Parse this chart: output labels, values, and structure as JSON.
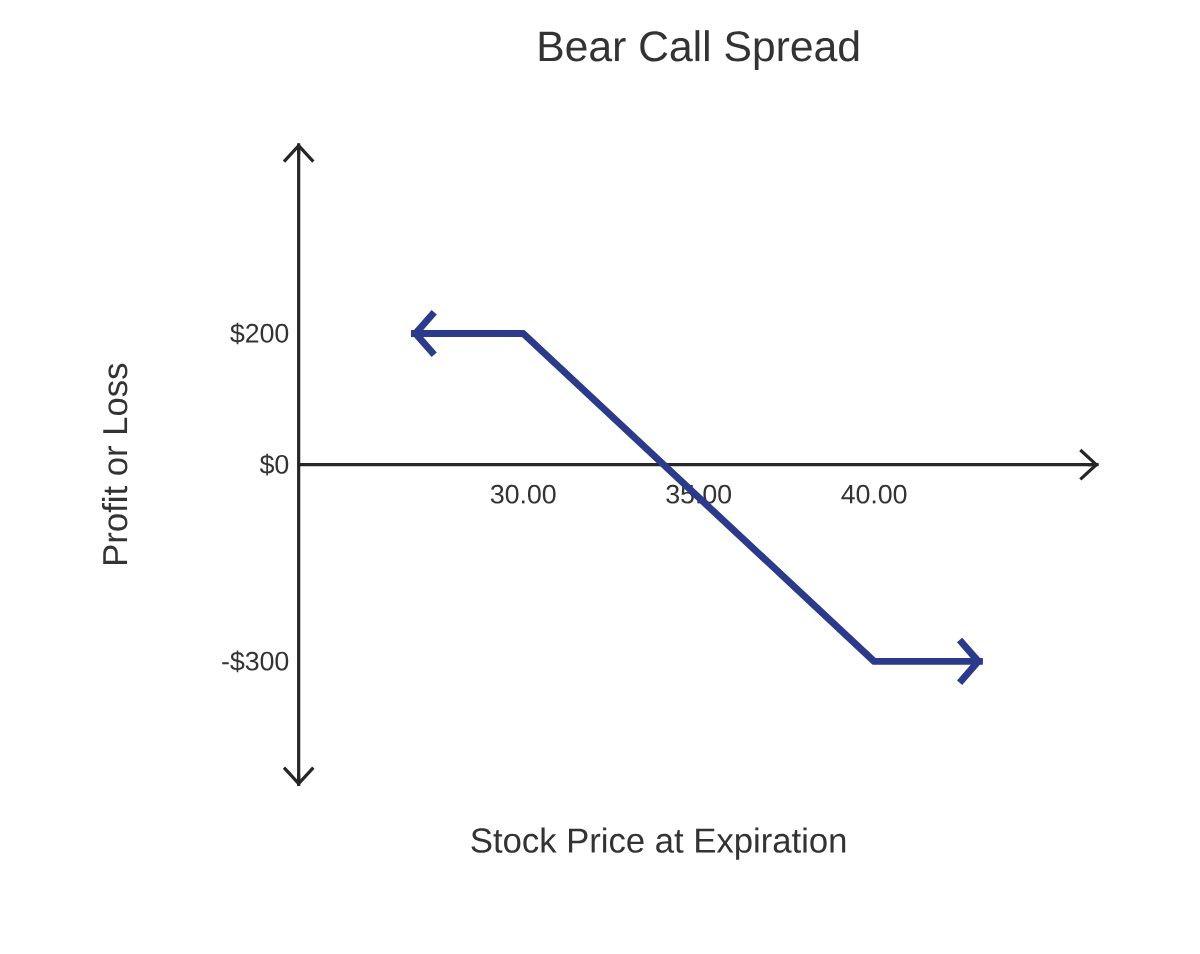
{
  "chart_data": {
    "type": "line",
    "title": "Bear Call Spread",
    "xlabel": "Stock Price at Expiration",
    "ylabel": "Profit or Loss",
    "x": [
      26.8,
      30,
      40,
      43.1
    ],
    "series": [
      {
        "color": "#2b3a8a",
        "values": [
          200,
          200,
          -300,
          -300
        ]
      }
    ],
    "xlim": [
      23.6,
      46.4
    ],
    "ylim": [
      -490,
      490
    ],
    "xticks": [
      {
        "value": 30,
        "label": "30.00"
      },
      {
        "value": 35,
        "label": "35.00"
      },
      {
        "value": 40,
        "label": "40.00"
      }
    ],
    "yticks": [
      {
        "value": 200,
        "label": "$200"
      },
      {
        "value": 0,
        "label": "$0"
      },
      {
        "value": -300,
        "label": "-$300"
      }
    ]
  }
}
